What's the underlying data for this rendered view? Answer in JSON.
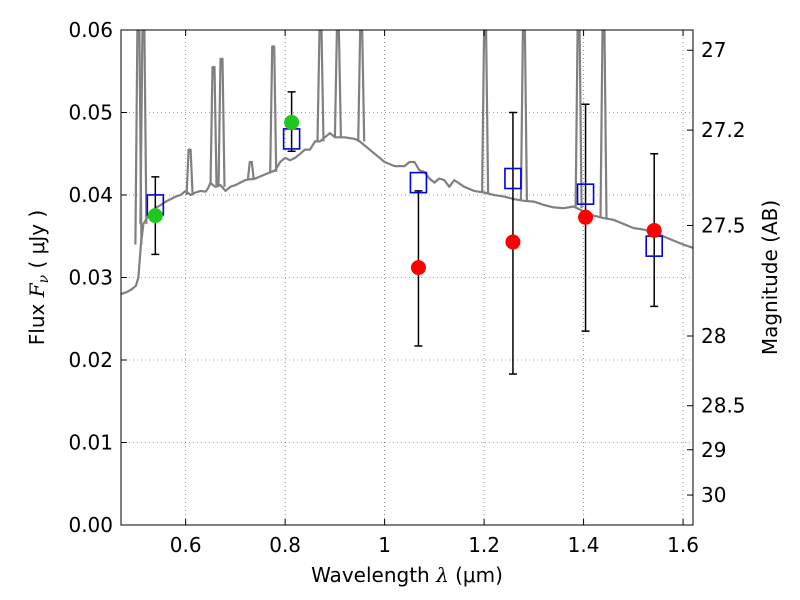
{
  "chart_data": {
    "type": "scatter",
    "title": "",
    "xlabel": {
      "prefix": "Wavelength  ",
      "symbol": "λ",
      "units": " (μm)"
    },
    "ylabel": {
      "prefix": "Flux  ",
      "symbol": "F",
      "subscript": "ν",
      "units": "  ( μJy )"
    },
    "y2label": "Magnitude (AB)",
    "xlim": [
      0.47,
      1.62
    ],
    "ylim": [
      0.0,
      0.06
    ],
    "grid": true,
    "xticks": [
      0.6,
      0.8,
      1.0,
      1.2,
      1.4,
      1.6
    ],
    "xtick_labels": [
      "0.6",
      "0.8",
      "1",
      "1.2",
      "1.4",
      "1.6"
    ],
    "yticks": [
      0.0,
      0.01,
      0.02,
      0.03,
      0.04,
      0.05,
      0.06
    ],
    "ytick_labels": [
      "0.00",
      "0.01",
      "0.02",
      "0.03",
      "0.04",
      "0.05",
      "0.06"
    ],
    "mag_ticks": [
      27,
      27.2,
      27.5,
      28,
      28.5,
      29,
      30
    ],
    "mag_tick_labels": [
      "27",
      "27.2",
      "27.5",
      "28",
      "28.5",
      "29",
      "30"
    ],
    "colors": {
      "spectrum": "#808080",
      "observed_green": "#1ec81e",
      "observed_red": "#ff0000",
      "model_box": "#0000dd",
      "errorbar": "#000000",
      "grid": "#000000"
    },
    "series": [
      {
        "name": "model spectrum",
        "kind": "line",
        "x": [
          0.47,
          0.48,
          0.49,
          0.5,
          0.505,
          0.51,
          0.515,
          0.52,
          0.525,
          0.53,
          0.535,
          0.54,
          0.545,
          0.55,
          0.56,
          0.57,
          0.58,
          0.59,
          0.6,
          0.61,
          0.62,
          0.63,
          0.64,
          0.645,
          0.65,
          0.655,
          0.66,
          0.67,
          0.68,
          0.69,
          0.7,
          0.72,
          0.74,
          0.76,
          0.78,
          0.79,
          0.8,
          0.81,
          0.82,
          0.83,
          0.84,
          0.85,
          0.86,
          0.87,
          0.88,
          0.89,
          0.9,
          0.92,
          0.94,
          0.95,
          0.96,
          0.98,
          1.0,
          1.02,
          1.04,
          1.05,
          1.06,
          1.07,
          1.08,
          1.09,
          1.1,
          1.11,
          1.12,
          1.13,
          1.14,
          1.16,
          1.18,
          1.2,
          1.22,
          1.24,
          1.26,
          1.28,
          1.3,
          1.32,
          1.34,
          1.36,
          1.38,
          1.4,
          1.42,
          1.44,
          1.46,
          1.48,
          1.5,
          1.52,
          1.54,
          1.56,
          1.58,
          1.6,
          1.62
        ],
        "y": [
          0.028,
          0.0282,
          0.0285,
          0.029,
          0.03,
          0.034,
          0.0365,
          0.037,
          0.0375,
          0.0378,
          0.038,
          0.0385,
          0.0386,
          0.0388,
          0.0392,
          0.0395,
          0.0398,
          0.04,
          0.0405,
          0.04,
          0.0403,
          0.0405,
          0.0404,
          0.0408,
          0.0415,
          0.0412,
          0.041,
          0.0412,
          0.0405,
          0.041,
          0.0412,
          0.0418,
          0.042,
          0.0425,
          0.043,
          0.044,
          0.0445,
          0.0442,
          0.0445,
          0.045,
          0.0455,
          0.0455,
          0.0465,
          0.0465,
          0.047,
          0.0475,
          0.047,
          0.047,
          0.0468,
          0.0465,
          0.046,
          0.045,
          0.044,
          0.0435,
          0.0435,
          0.044,
          0.044,
          0.043,
          0.0428,
          0.042,
          0.0415,
          0.042,
          0.0418,
          0.041,
          0.0418,
          0.041,
          0.0405,
          0.0403,
          0.04,
          0.0398,
          0.0395,
          0.0393,
          0.0392,
          0.0388,
          0.0385,
          0.0384,
          0.0386,
          0.038,
          0.0375,
          0.0372,
          0.037,
          0.0365,
          0.036,
          0.0358,
          0.0355,
          0.035,
          0.0345,
          0.034,
          0.0336
        ]
      },
      {
        "name": "emission lines",
        "kind": "spikes",
        "lines": [
          {
            "x": 0.505,
            "y": 0.034,
            "peak": 0.06
          },
          {
            "x": 0.515,
            "y": 0.0365,
            "peak": 0.06
          },
          {
            "x": 0.608,
            "y": 0.04,
            "peak": 0.0455
          },
          {
            "x": 0.656,
            "y": 0.0412,
            "peak": 0.0555
          },
          {
            "x": 0.672,
            "y": 0.041,
            "peak": 0.0565
          },
          {
            "x": 0.731,
            "y": 0.0418,
            "peak": 0.044
          },
          {
            "x": 0.776,
            "y": 0.0428,
            "peak": 0.058
          },
          {
            "x": 0.871,
            "y": 0.0465,
            "peak": 0.06
          },
          {
            "x": 0.906,
            "y": 0.047,
            "peak": 0.06
          },
          {
            "x": 0.953,
            "y": 0.0465,
            "peak": 0.06
          },
          {
            "x": 1.202,
            "y": 0.0403,
            "peak": 0.06
          },
          {
            "x": 1.28,
            "y": 0.0393,
            "peak": 0.06
          },
          {
            "x": 1.39,
            "y": 0.0384,
            "peak": 0.06
          },
          {
            "x": 1.44,
            "y": 0.0372,
            "peak": 0.06
          }
        ]
      },
      {
        "name": "model photometry",
        "kind": "square",
        "x": [
          0.539,
          0.813,
          1.068,
          1.258,
          1.404,
          1.542
        ],
        "y": [
          0.0388,
          0.0468,
          0.0415,
          0.042,
          0.0401,
          0.0338
        ]
      },
      {
        "name": "observed flux",
        "kind": "point",
        "x": [
          0.539,
          0.813,
          1.068,
          1.258,
          1.404,
          1.542
        ],
        "y": [
          0.0375,
          0.0488,
          0.0312,
          0.0343,
          0.0373,
          0.0357
        ],
        "colors": [
          "green",
          "green",
          "red",
          "red",
          "red",
          "red"
        ],
        "yerr_low": [
          0.0328,
          0.0453,
          0.0217,
          0.0183,
          0.0235,
          0.0265
        ],
        "yerr_high": [
          0.0422,
          0.0525,
          0.0405,
          0.05,
          0.051,
          0.045
        ]
      }
    ]
  }
}
